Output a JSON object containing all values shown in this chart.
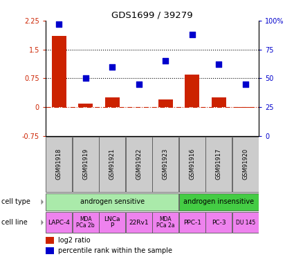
{
  "title": "GDS1699 / 39279",
  "samples": [
    "GSM91918",
    "GSM91919",
    "GSM91921",
    "GSM91922",
    "GSM91923",
    "GSM91916",
    "GSM91917",
    "GSM91920"
  ],
  "log2_ratio": [
    1.85,
    0.1,
    0.25,
    0.0,
    0.2,
    0.85,
    0.25,
    -0.02
  ],
  "percentile_rank": [
    97,
    50,
    60,
    45,
    65,
    88,
    62,
    45
  ],
  "cell_type_groups": [
    {
      "label": "androgen sensitive",
      "span": [
        0,
        5
      ],
      "color": "#aaeaaa"
    },
    {
      "label": "androgen insensitive",
      "span": [
        5,
        8
      ],
      "color": "#44cc44"
    }
  ],
  "cell_lines": [
    {
      "label": "LAPC-4",
      "span": [
        0,
        1
      ],
      "fontsize": 6.5
    },
    {
      "label": "MDA\nPCa 2b",
      "span": [
        1,
        2
      ],
      "fontsize": 5.5
    },
    {
      "label": "LNCa\nP",
      "span": [
        2,
        3
      ],
      "fontsize": 6.5
    },
    {
      "label": "22Rv1",
      "span": [
        3,
        4
      ],
      "fontsize": 6.5
    },
    {
      "label": "MDA\nPCa 2a",
      "span": [
        4,
        5
      ],
      "fontsize": 5.5
    },
    {
      "label": "PPC-1",
      "span": [
        5,
        6
      ],
      "fontsize": 6.5
    },
    {
      "label": "PC-3",
      "span": [
        6,
        7
      ],
      "fontsize": 6.5
    },
    {
      "label": "DU 145",
      "span": [
        7,
        8
      ],
      "fontsize": 5.5
    }
  ],
  "cell_line_color": "#ee82ee",
  "bar_color": "#cc2200",
  "dot_color": "#0000cc",
  "ylim_left": [
    -0.75,
    2.25
  ],
  "ylim_right": [
    0,
    100
  ],
  "yticks_left": [
    -0.75,
    0.0,
    0.75,
    1.5,
    2.25
  ],
  "yticks_right": [
    0,
    25,
    50,
    75,
    100
  ],
  "ytick_labels_left": [
    "-0.75",
    "0",
    "0.75",
    "1.5",
    "2.25"
  ],
  "ytick_labels_right": [
    "0",
    "25",
    "50",
    "75",
    "100%"
  ],
  "hlines": [
    0.75,
    1.5
  ],
  "hline_zero_color": "#cc2200",
  "hline_grid_color": "#000000",
  "bar_width": 0.55,
  "dot_size": 40,
  "legend_red_label": "log2 ratio",
  "legend_blue_label": "percentile rank within the sample",
  "gsm_box_color": "#cccccc",
  "left_label_cell_type": "cell type",
  "left_label_cell_line": "cell line",
  "n_samples": 8
}
